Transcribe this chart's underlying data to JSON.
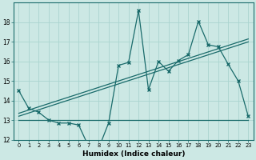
{
  "xlabel": "Humidex (Indice chaleur)",
  "background_color": "#cce8e4",
  "grid_color": "#aad4cf",
  "line_color": "#1a6b6b",
  "x_data": [
    0,
    1,
    2,
    3,
    4,
    5,
    6,
    7,
    8,
    9,
    10,
    11,
    12,
    13,
    14,
    15,
    16,
    17,
    18,
    19,
    20,
    21,
    22,
    23
  ],
  "y_main": [
    14.5,
    13.6,
    13.4,
    13.0,
    12.85,
    12.85,
    12.75,
    11.65,
    11.55,
    12.85,
    15.8,
    15.95,
    18.6,
    14.55,
    16.0,
    15.5,
    16.05,
    16.35,
    18.05,
    16.85,
    16.75,
    15.85,
    15.0,
    13.2
  ],
  "trend1_x": [
    0,
    23
  ],
  "trend1_y": [
    13.2,
    17.0
  ],
  "trend2_x": [
    0,
    23
  ],
  "trend2_y": [
    13.35,
    17.15
  ],
  "flat_y": 13.0,
  "flat_x_start": 0,
  "flat_x_end": 23,
  "ylim": [
    12,
    19
  ],
  "xlim": [
    -0.5,
    23.5
  ],
  "yticks": [
    12,
    13,
    14,
    15,
    16,
    17,
    18
  ]
}
